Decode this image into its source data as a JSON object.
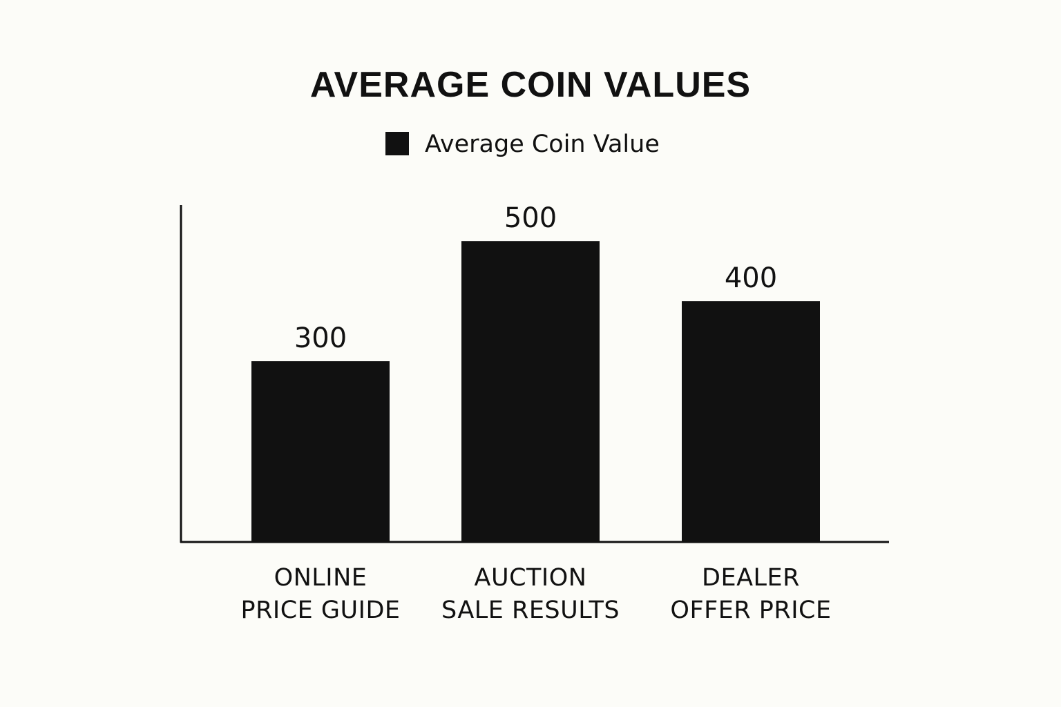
{
  "chart_data": {
    "type": "bar",
    "title": "AVERAGE COIN VALUES",
    "xlabel": "",
    "ylabel": "",
    "categories": [
      [
        "ONLINE",
        "PRICE GUIDE"
      ],
      [
        "AUCTION",
        "SALE RESULTS"
      ],
      [
        "DEALER",
        "OFFER PRICE"
      ]
    ],
    "series": [
      {
        "name": "Average Coin Value",
        "values": [
          300,
          500,
          400
        ],
        "color": "#111111"
      }
    ],
    "data_labels": [
      "300",
      "500",
      "400"
    ],
    "ylim": [
      0,
      560
    ],
    "grid": false,
    "legend_position": "top-center"
  }
}
